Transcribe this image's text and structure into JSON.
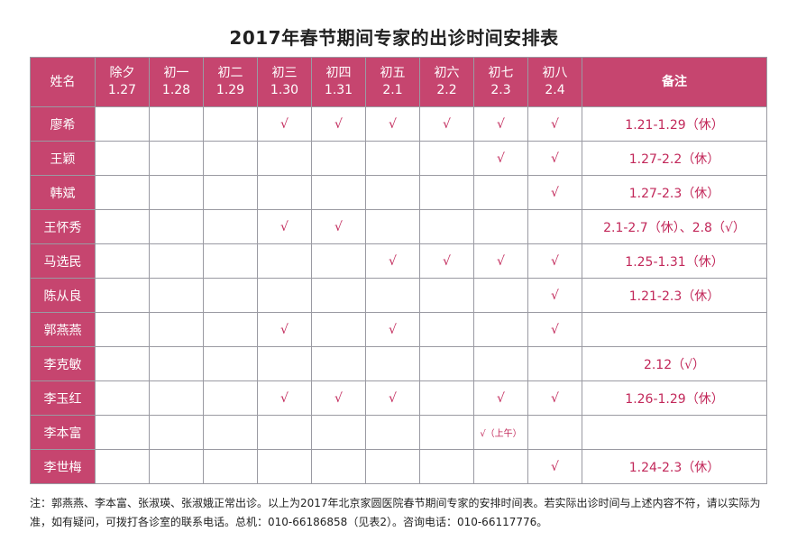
{
  "title": "2017年春节期间专家的出诊时间安排表",
  "header": {
    "name": "姓名",
    "days": [
      {
        "label": "除夕",
        "date": "1.27"
      },
      {
        "label": "初一",
        "date": "1.28"
      },
      {
        "label": "初二",
        "date": "1.29"
      },
      {
        "label": "初三",
        "date": "1.30"
      },
      {
        "label": "初四",
        "date": "1.31"
      },
      {
        "label": "初五",
        "date": "2.1"
      },
      {
        "label": "初六",
        "date": "2.2"
      },
      {
        "label": "初七",
        "date": "2.3"
      },
      {
        "label": "初八",
        "date": "2.4"
      }
    ],
    "note": "备注"
  },
  "rows": [
    {
      "name": "廖希",
      "cells": [
        "",
        "",
        "",
        "√",
        "√",
        "√",
        "√",
        "√",
        "√"
      ],
      "note": "1.21-1.29（休）"
    },
    {
      "name": "王颖",
      "cells": [
        "",
        "",
        "",
        "",
        "",
        "",
        "",
        "√",
        "√"
      ],
      "note": "1.27-2.2（休）"
    },
    {
      "name": "韩斌",
      "cells": [
        "",
        "",
        "",
        "",
        "",
        "",
        "",
        "",
        "√"
      ],
      "note": "1.27-2.3（休）"
    },
    {
      "name": "王怀秀",
      "cells": [
        "",
        "",
        "",
        "√",
        "√",
        "",
        "",
        "",
        ""
      ],
      "note": "2.1-2.7（休）、2.8（√）"
    },
    {
      "name": "马选民",
      "cells": [
        "",
        "",
        "",
        "",
        "",
        "√",
        "√",
        "√",
        "√"
      ],
      "note": "1.25-1.31（休）"
    },
    {
      "name": "陈从良",
      "cells": [
        "",
        "",
        "",
        "",
        "",
        "",
        "",
        "",
        "√"
      ],
      "note": "1.21-2.3（休）"
    },
    {
      "name": "郭燕燕",
      "cells": [
        "",
        "",
        "",
        "√",
        "",
        "√",
        "",
        "",
        "√"
      ],
      "note": ""
    },
    {
      "name": "李克敏",
      "cells": [
        "",
        "",
        "",
        "",
        "",
        "",
        "",
        "",
        ""
      ],
      "note": "2.12（√）"
    },
    {
      "name": "李玉红",
      "cells": [
        "",
        "",
        "",
        "√",
        "√",
        "√",
        "",
        "√",
        "√"
      ],
      "note": "1.26-1.29（休）"
    },
    {
      "name": "李本富",
      "cells": [
        "",
        "",
        "",
        "",
        "",
        "",
        "",
        "√（上午）",
        ""
      ],
      "note": ""
    },
    {
      "name": "李世梅",
      "cells": [
        "",
        "",
        "",
        "",
        "",
        "",
        "",
        "",
        "√"
      ],
      "note": "1.24-2.3（休）"
    }
  ],
  "footnote": "注：郭燕燕、李本富、张淑瑛、张淑娥正常出诊。以上为2017年北京家圆医院春节期间专家的安排时间表。若实际出诊时间与上述内容不符，请以实际为准，如有疑问，可拨打各诊室的联系电话。总机：010-66186858（见表2）。咨询电话：010-66117776。"
}
